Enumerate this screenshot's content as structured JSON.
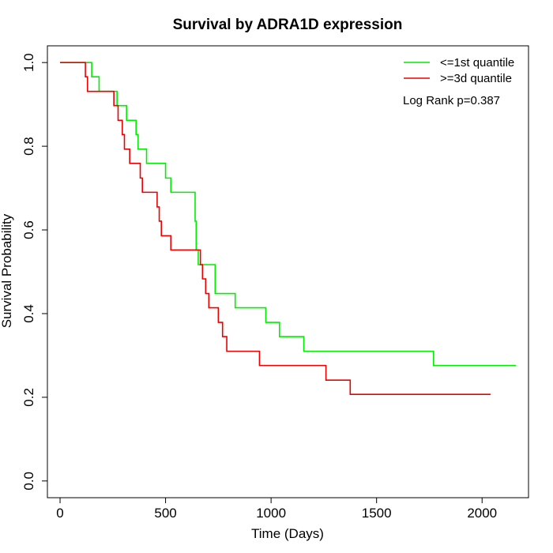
{
  "chart_data": {
    "type": "line",
    "title": "Survival by ADRA1D expression",
    "xlabel": "Time (Days)",
    "ylabel": "Survival Probability",
    "xlim": [
      -60,
      2220
    ],
    "ylim": [
      -0.04,
      1.04
    ],
    "x_ticks": [
      0,
      500,
      1000,
      1500,
      2000
    ],
    "y_ticks": [
      0.0,
      0.2,
      0.4,
      0.6,
      0.8,
      1.0
    ],
    "x_tick_labels": [
      "0",
      "500",
      "1000",
      "1500",
      "2000"
    ],
    "y_tick_labels": [
      "0.0",
      "0.2",
      "0.4",
      "0.6",
      "0.8",
      "1.0"
    ],
    "legend_position": "top-right",
    "annotation": "Log Rank p=0.387",
    "series": [
      {
        "name": "<=1st quantile",
        "color": "#00ee00",
        "step": true,
        "x": [
          0,
          150,
          185,
          270,
          315,
          360,
          370,
          410,
          500,
          525,
          640,
          645,
          655,
          735,
          830,
          975,
          1040,
          1155,
          1770,
          2160
        ],
        "y": [
          1.0,
          0.966,
          0.931,
          0.897,
          0.862,
          0.828,
          0.793,
          0.759,
          0.724,
          0.69,
          0.621,
          0.552,
          0.517,
          0.448,
          0.414,
          0.379,
          0.345,
          0.31,
          0.276,
          0.276
        ]
      },
      {
        "name": ">=3d quantile",
        "color": "#ee0000",
        "step": true,
        "x": [
          0,
          120,
          130,
          255,
          275,
          295,
          305,
          330,
          380,
          390,
          460,
          470,
          480,
          525,
          665,
          675,
          690,
          705,
          750,
          770,
          790,
          945,
          1260,
          1375,
          2040
        ],
        "y": [
          1.0,
          0.966,
          0.931,
          0.897,
          0.862,
          0.828,
          0.793,
          0.759,
          0.724,
          0.69,
          0.655,
          0.621,
          0.586,
          0.552,
          0.517,
          0.483,
          0.448,
          0.414,
          0.379,
          0.345,
          0.31,
          0.276,
          0.241,
          0.207,
          0.207
        ]
      }
    ]
  }
}
